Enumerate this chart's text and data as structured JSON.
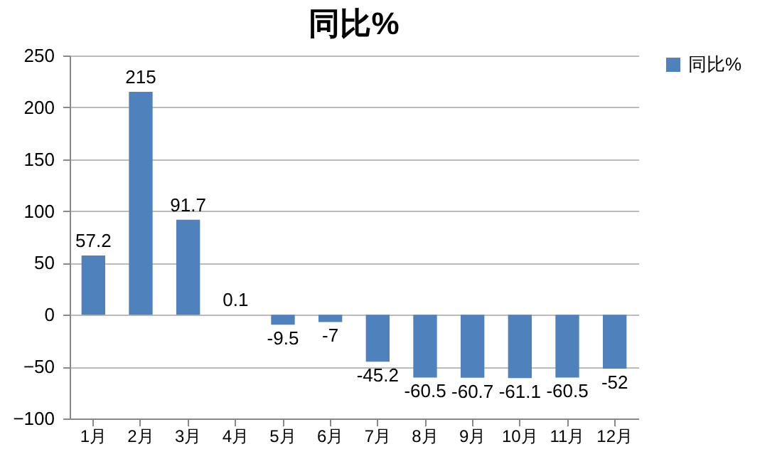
{
  "chart_data": {
    "type": "bar",
    "title": "同比%",
    "categories": [
      "1月",
      "2月",
      "3月",
      "4月",
      "5月",
      "6月",
      "7月",
      "8月",
      "9月",
      "10月",
      "11月",
      "12月"
    ],
    "series": [
      {
        "name": "同比%",
        "color": "#4f81bd",
        "values": [
          57.2,
          215,
          91.7,
          0.1,
          -9.5,
          -7,
          -45.2,
          -60.5,
          -60.7,
          -61.1,
          -60.5,
          -52
        ]
      }
    ],
    "ylim": [
      -100,
      250
    ],
    "yticks": [
      -100,
      -50,
      0,
      50,
      100,
      150,
      200,
      250
    ],
    "grid": "y",
    "legend": "right",
    "data_labels": true
  }
}
